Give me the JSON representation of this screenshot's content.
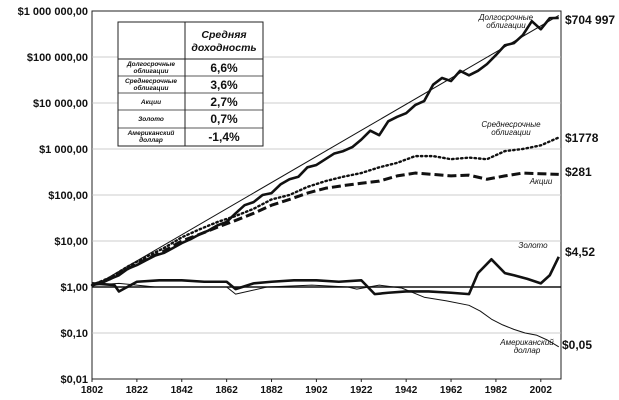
{
  "chart_data": {
    "type": "line",
    "title": "",
    "xlabel": "",
    "ylabel": "",
    "yscale": "log",
    "ylim": [
      0.01,
      1000000
    ],
    "xlim": [
      1802,
      2011
    ],
    "y_ticks": [
      {
        "value": 1000000,
        "label": "$1 000 000,00"
      },
      {
        "value": 100000,
        "label": "$100 000,00"
      },
      {
        "value": 10000,
        "label": "$10 000,00"
      },
      {
        "value": 1000,
        "label": "$1 000,00"
      },
      {
        "value": 100,
        "label": "$100,00"
      },
      {
        "value": 10,
        "label": "$10,00"
      },
      {
        "value": 1,
        "label": "$1,00"
      },
      {
        "value": 0.1,
        "label": "$0,10"
      },
      {
        "value": 0.01,
        "label": "$0,01"
      }
    ],
    "x_ticks": [
      {
        "value": 1802,
        "label": "1802"
      },
      {
        "value": 1822,
        "label": "1822"
      },
      {
        "value": 1842,
        "label": "1842"
      },
      {
        "value": 1862,
        "label": "1862"
      },
      {
        "value": 1882,
        "label": "1882"
      },
      {
        "value": 1902,
        "label": "1902"
      },
      {
        "value": 1922,
        "label": "1922"
      },
      {
        "value": 1942,
        "label": "1942"
      },
      {
        "value": 1962,
        "label": "1962"
      },
      {
        "value": 1982,
        "label": "1982"
      },
      {
        "value": 2002,
        "label": "2002"
      }
    ],
    "series": [
      {
        "id": "stocks",
        "name": "Долгосрочные облигации",
        "end_label": "$704 997",
        "style": "thick",
        "x": [
          1802,
          1806,
          1810,
          1814,
          1818,
          1822,
          1826,
          1830,
          1834,
          1838,
          1842,
          1846,
          1850,
          1854,
          1858,
          1862,
          1866,
          1870,
          1874,
          1878,
          1882,
          1886,
          1890,
          1894,
          1898,
          1902,
          1906,
          1910,
          1914,
          1918,
          1922,
          1926,
          1930,
          1934,
          1938,
          1942,
          1946,
          1950,
          1954,
          1958,
          1962,
          1966,
          1970,
          1974,
          1978,
          1982,
          1986,
          1990,
          1994,
          1998,
          2002,
          2006,
          2010
        ],
        "y": [
          1.1,
          1.2,
          1.5,
          1.8,
          2.5,
          3,
          3.8,
          4.8,
          5.5,
          7,
          9,
          11,
          14,
          17,
          22,
          26,
          40,
          60,
          70,
          100,
          110,
          170,
          220,
          250,
          400,
          450,
          600,
          800,
          900,
          1100,
          1600,
          2500,
          2000,
          4000,
          5000,
          6000,
          9000,
          11000,
          25000,
          35000,
          30000,
          50000,
          40000,
          50000,
          70000,
          110000,
          180000,
          200000,
          300000,
          600000,
          400000,
          700000,
          705000
        ]
      },
      {
        "id": "bonds",
        "name": "Среднесрочные облигации",
        "end_label": "$1778",
        "style": "dotted",
        "x": [
          1802,
          1810,
          1818,
          1826,
          1834,
          1842,
          1850,
          1858,
          1866,
          1874,
          1882,
          1890,
          1898,
          1906,
          1914,
          1922,
          1930,
          1938,
          1946,
          1954,
          1962,
          1970,
          1978,
          1986,
          1994,
          2002,
          2010
        ],
        "y": [
          1.1,
          1.6,
          2.8,
          4.5,
          7,
          12,
          18,
          26,
          35,
          50,
          80,
          100,
          150,
          200,
          250,
          300,
          400,
          500,
          700,
          700,
          600,
          650,
          600,
          900,
          1000,
          1200,
          1778
        ]
      },
      {
        "id": "bills",
        "name": "Акции",
        "end_label": "$281",
        "style": "dashed",
        "x": [
          1802,
          1810,
          1818,
          1826,
          1834,
          1842,
          1850,
          1858,
          1866,
          1874,
          1882,
          1890,
          1898,
          1906,
          1914,
          1922,
          1930,
          1938,
          1946,
          1954,
          1962,
          1970,
          1978,
          1986,
          1994,
          2002,
          2010
        ],
        "y": [
          1.1,
          1.5,
          2.5,
          4,
          6,
          10,
          14,
          20,
          28,
          40,
          60,
          80,
          110,
          140,
          160,
          180,
          200,
          260,
          300,
          280,
          260,
          270,
          220,
          260,
          300,
          290,
          281
        ]
      },
      {
        "id": "gold",
        "name": "Золото",
        "end_label": "$4,52",
        "style": "thick",
        "x": [
          1802,
          1812,
          1814,
          1822,
          1832,
          1842,
          1852,
          1862,
          1866,
          1874,
          1882,
          1892,
          1902,
          1912,
          1922,
          1928,
          1934,
          1942,
          1952,
          1962,
          1970,
          1974,
          1980,
          1986,
          1990,
          1996,
          2002,
          2006,
          2010
        ],
        "y": [
          1.2,
          1.1,
          0.8,
          1.3,
          1.4,
          1.4,
          1.3,
          1.3,
          0.9,
          1.2,
          1.3,
          1.4,
          1.4,
          1.3,
          1.4,
          0.7,
          0.75,
          0.8,
          0.8,
          0.75,
          0.7,
          2,
          4,
          2,
          1.8,
          1.5,
          1.2,
          1.8,
          4.52
        ]
      },
      {
        "id": "dollar",
        "name": "Американский доллар",
        "end_label": "$0,05",
        "style": "thin",
        "x": [
          1802,
          1814,
          1830,
          1850,
          1862,
          1866,
          1880,
          1900,
          1916,
          1920,
          1930,
          1940,
          1950,
          1960,
          1970,
          1975,
          1980,
          1985,
          1990,
          1995,
          2000,
          2005,
          2010
        ],
        "y": [
          1.1,
          1.2,
          1.0,
          1.0,
          1.0,
          0.7,
          1.0,
          1.1,
          1.0,
          0.9,
          1.1,
          0.95,
          0.6,
          0.5,
          0.4,
          0.3,
          0.2,
          0.15,
          0.12,
          0.1,
          0.09,
          0.07,
          0.05
        ]
      }
    ],
    "trend": {
      "x": [
        1802,
        2010
      ],
      "y": [
        1,
        800000
      ],
      "style": "thin"
    },
    "table": {
      "header": "Средняя доходность",
      "rows": [
        {
          "name": "Долгосрочные облигации",
          "value": "6,6%"
        },
        {
          "name": "Среднесрочные облигации",
          "value": "3,6%"
        },
        {
          "name": "Акции",
          "value": "2,7%"
        },
        {
          "name": "Золото",
          "value": "0,7%"
        },
        {
          "name": "Американский доллар",
          "value": "-1,4%"
        }
      ]
    }
  }
}
